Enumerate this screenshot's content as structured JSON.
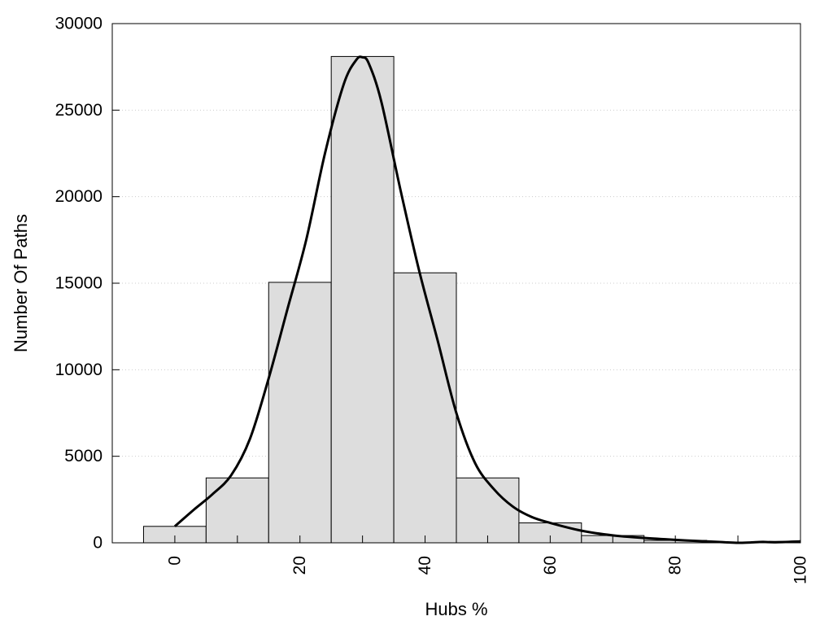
{
  "chart_data": {
    "type": "bar",
    "title": "",
    "xlabel": "Hubs %",
    "ylabel": "Number Of Paths",
    "xlim": [
      -10,
      100
    ],
    "ylim": [
      0,
      30000
    ],
    "x_ticks": [
      0,
      20,
      40,
      60,
      80,
      100
    ],
    "y_ticks": [
      0,
      5000,
      10000,
      15000,
      20000,
      25000,
      30000
    ],
    "grid": "horizontal-dotted",
    "bin_width": 10,
    "bars": [
      {
        "x": 0,
        "value": 950
      },
      {
        "x": 10,
        "value": 3750
      },
      {
        "x": 20,
        "value": 15050
      },
      {
        "x": 30,
        "value": 28100
      },
      {
        "x": 40,
        "value": 15600
      },
      {
        "x": 50,
        "value": 3750
      },
      {
        "x": 60,
        "value": 1150
      },
      {
        "x": 70,
        "value": 420
      },
      {
        "x": 80,
        "value": 140
      },
      {
        "x": 90,
        "value": 20
      },
      {
        "x": 100,
        "value": 80
      }
    ],
    "curve": {
      "x": [
        0,
        3,
        6,
        9,
        12,
        15,
        18,
        21,
        24,
        27,
        29,
        30,
        31,
        33,
        36,
        39,
        42,
        45,
        48,
        51,
        54,
        57,
        60,
        65,
        70,
        75,
        80,
        85,
        88,
        90,
        92,
        94,
        96,
        100
      ],
      "y": [
        950,
        1900,
        2800,
        3900,
        6000,
        9500,
        13500,
        17500,
        22500,
        26500,
        27900,
        28050,
        27700,
        25500,
        20500,
        15800,
        11700,
        7500,
        4600,
        3100,
        2100,
        1500,
        1150,
        700,
        430,
        280,
        170,
        80,
        30,
        0,
        20,
        50,
        30,
        80
      ]
    },
    "colors": {
      "bar_fill": "#dddddd",
      "bar_stroke": "#000000",
      "curve": "#000000",
      "grid": "#cccccc"
    }
  }
}
